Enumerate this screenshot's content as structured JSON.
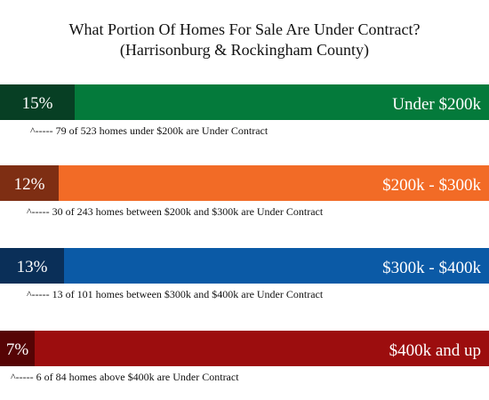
{
  "chart_data": {
    "type": "bar",
    "orientation": "horizontal",
    "title": "What Portion Of Homes For Sale Are Under Contract?",
    "subtitle": "(Harrisonburg & Rockingham County)",
    "xlim": [
      0,
      100
    ],
    "categories": [
      "Under $200k",
      "$200k - $300k",
      "$300k - $400k",
      "$400k and up"
    ],
    "values": [
      15,
      12,
      13,
      7
    ],
    "value_labels": [
      "15%",
      "12%",
      "13%",
      "7%"
    ],
    "notes": [
      "^-----  79 of 523 homes under $200k are Under Contract",
      "^-----  30 of 243 homes between $200k and $300k are Under Contract",
      "^-----  13 of 101 homes between $300k and $400k are Under Contract",
      "^-----  6 of 84 homes above $400k are Under Contract"
    ],
    "colors": {
      "bar": [
        "#047a3b",
        "#f26b26",
        "#0b5aa6",
        "#9c0d0e"
      ],
      "portion": [
        "#073f24",
        "#7e2e13",
        "#0a2f58",
        "#560405"
      ]
    },
    "grid": false,
    "legend": "none"
  }
}
